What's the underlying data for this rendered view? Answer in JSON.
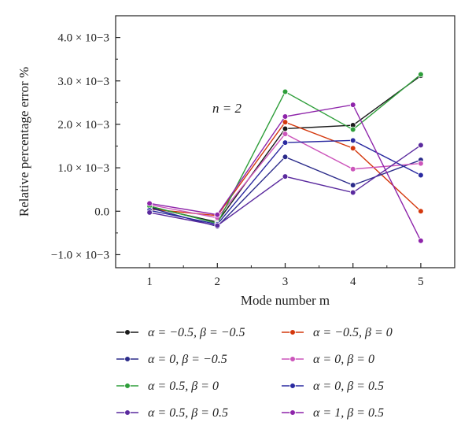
{
  "chart_data": {
    "type": "line",
    "xlabel": "Mode number m",
    "ylabel": "Relative percentage error %",
    "x": [
      1,
      2,
      3,
      4,
      5
    ],
    "x_ticks": [
      "1",
      "2",
      "3",
      "4",
      "5"
    ],
    "xlim": [
      0.5,
      5.5
    ],
    "ylim": [
      -0.0013,
      0.0045
    ],
    "y_ticks": [
      {
        "value": -0.001,
        "label": "−1.0 × 10−3"
      },
      {
        "value": 0.0,
        "label": "0.0"
      },
      {
        "value": 0.001,
        "label": "1.0 × 10−3"
      },
      {
        "value": 0.002,
        "label": "2.0 × 10−3"
      },
      {
        "value": 0.003,
        "label": "3.0 × 10−3"
      },
      {
        "value": 0.004,
        "label": "4.0 × 10−3"
      }
    ],
    "annotation": "n = 2",
    "legend_position": "bottom",
    "series": [
      {
        "name": "α = −0.5, β = −0.5",
        "color": "#1a1a1a",
        "values": [
          0.0001,
          -0.00025,
          0.0019,
          0.00198,
          0.00312
        ]
      },
      {
        "name": "α = −0.5, β = 0",
        "color": "#d4380d",
        "values": [
          5e-05,
          -0.0001,
          0.00205,
          0.00145,
          0.0
        ]
      },
      {
        "name": "α = 0, β = −0.5",
        "color": "#2b2b8a",
        "values": [
          8e-05,
          -0.00035,
          0.00125,
          0.0006,
          0.00118
        ]
      },
      {
        "name": "α = 0, β = 0",
        "color": "#cc55bb",
        "values": [
          0.00015,
          -0.00015,
          0.00178,
          0.00097,
          0.0011
        ]
      },
      {
        "name": "α = 0.5, β = 0",
        "color": "#2e9e3a",
        "values": [
          0.00012,
          -0.00028,
          0.00275,
          0.00188,
          0.00315
        ]
      },
      {
        "name": "α = 0, β = 0.5",
        "color": "#2a2aa0",
        "values": [
          2e-05,
          -0.0003,
          0.00158,
          0.00163,
          0.00083
        ]
      },
      {
        "name": "α = 0.5, β = 0.5",
        "color": "#5a2a9e",
        "values": [
          -3e-05,
          -0.00033,
          0.0008,
          0.00043,
          0.00152
        ]
      },
      {
        "name": "α = 1, β = 0.5",
        "color": "#8e24aa",
        "values": [
          0.00018,
          -8e-05,
          0.00218,
          0.00245,
          -0.00068
        ]
      }
    ]
  }
}
